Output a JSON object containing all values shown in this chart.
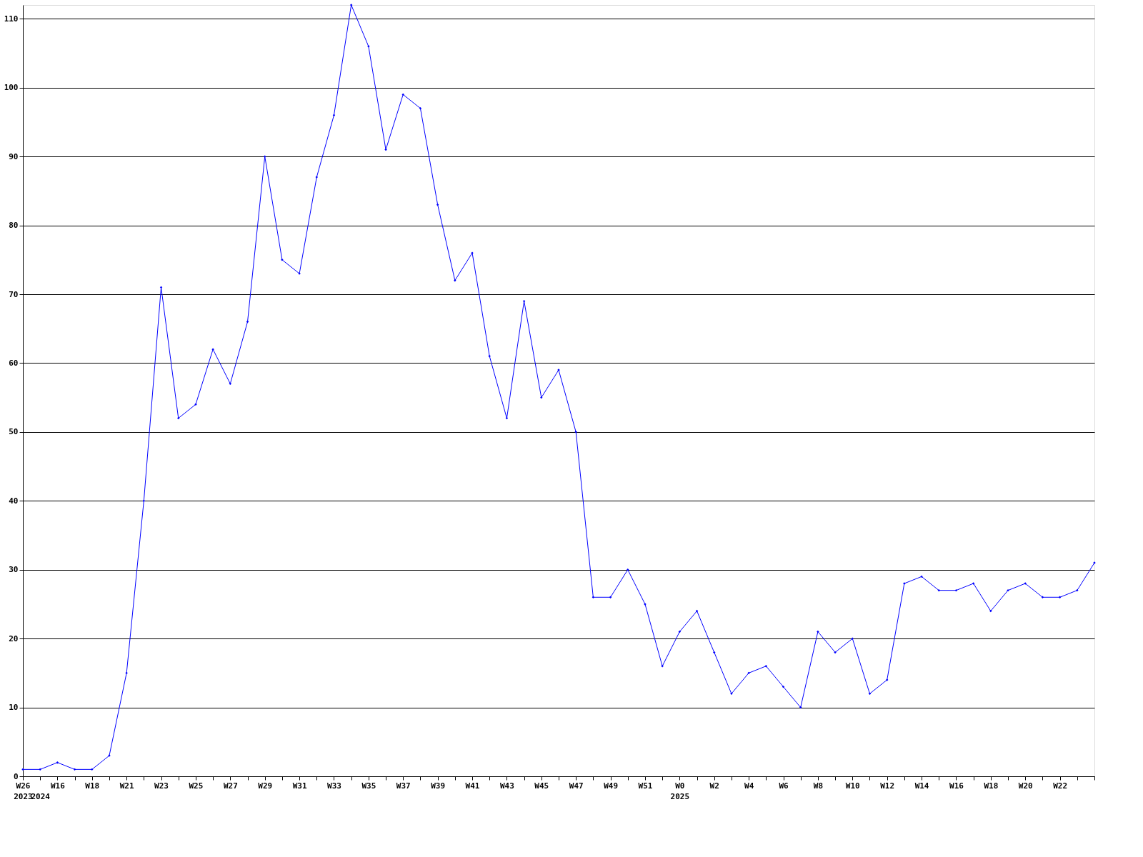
{
  "chart_data": {
    "type": "line",
    "categories": [
      "W26\n2023",
      "\n2024",
      "W16",
      null,
      "W18",
      null,
      "W21",
      null,
      "W23",
      null,
      "W25",
      null,
      "W27",
      null,
      "W29",
      null,
      "W31",
      null,
      "W33",
      null,
      "W35",
      null,
      "W37",
      null,
      "W39",
      null,
      "W41",
      null,
      "W43",
      null,
      "W45",
      null,
      "W47",
      null,
      "W49",
      null,
      "W51",
      null,
      "W0\n2025",
      null,
      "W2",
      null,
      "W4",
      null,
      "W6",
      null,
      "W8",
      null,
      "W10",
      null,
      "W12",
      null,
      "W14",
      null,
      "W16",
      null,
      "W18",
      null,
      "W20",
      null,
      "W22",
      null,
      null
    ],
    "series": [
      {
        "color": "#0000ff",
        "values": [
          1,
          1,
          2,
          1,
          1,
          3,
          15,
          40,
          71,
          52,
          54,
          62,
          57,
          66,
          90,
          75,
          73,
          87,
          96,
          112,
          106,
          91,
          99,
          97,
          83,
          72,
          76,
          61,
          52,
          69,
          55,
          59,
          50,
          26,
          26,
          30,
          25,
          16,
          21,
          24,
          18,
          12,
          15,
          16,
          13,
          10,
          21,
          18,
          20,
          12,
          14,
          28,
          29,
          27,
          27,
          28,
          24,
          27,
          28,
          26,
          26,
          27,
          31
        ]
      }
    ],
    "ylim": [
      0,
      112
    ],
    "yticks": [
      0,
      10,
      20,
      30,
      40,
      50,
      60,
      70,
      80,
      90,
      100,
      110
    ],
    "grid": "y",
    "marker": "diamond",
    "line_style": "solid"
  }
}
